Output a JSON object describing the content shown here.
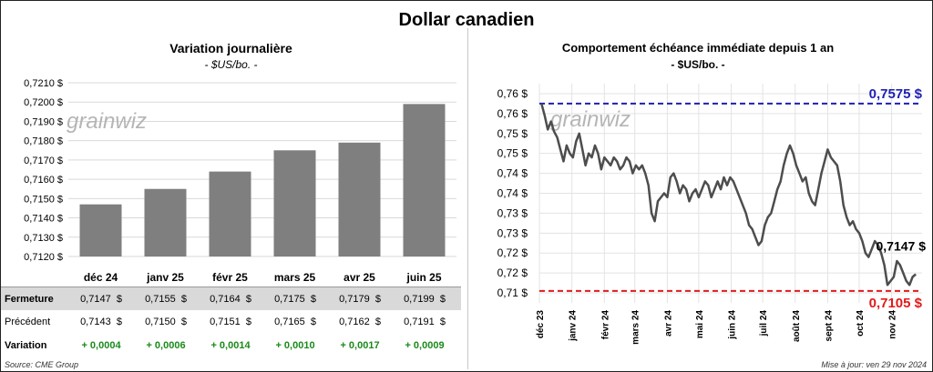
{
  "title": "Dollar canadien",
  "left": {
    "title": "Variation  journalière",
    "subtitle": "- $US/bo. -",
    "watermark": "grainwiz",
    "chart_data": {
      "type": "bar",
      "categories": [
        "déc 24",
        "janv 25",
        "févr 25",
        "mars 25",
        "avr 25",
        "juin 25"
      ],
      "values": [
        0.7147,
        0.7155,
        0.7164,
        0.7175,
        0.7179,
        0.7199
      ],
      "ylim": [
        0.712,
        0.721
      ],
      "yticks": [
        "0,7120 $",
        "0,7130 $",
        "0,7140 $",
        "0,7150 $",
        "0,7160 $",
        "0,7170 $",
        "0,7180 $",
        "0,7190 $",
        "0,7200 $",
        "0,7210 $"
      ],
      "bar_color": "#7f7f7f",
      "grid": true
    },
    "table": {
      "rows": [
        {
          "label": "Fermeture",
          "cells": [
            "0,7147  $",
            "0,7155  $",
            "0,7164  $",
            "0,7175  $",
            "0,7179  $",
            "0,7199  $"
          ],
          "bg": "#d9d9d9"
        },
        {
          "label": "Précédent",
          "cells": [
            "0,7143  $",
            "0,7150  $",
            "0,7151  $",
            "0,7165  $",
            "0,7162  $",
            "0,7191  $"
          ],
          "bg": "#ffffff"
        },
        {
          "label": "Variation",
          "cells": [
            "+ 0,0004",
            "+ 0,0006",
            "+ 0,0014",
            "+ 0,0010",
            "+ 0,0017",
            "+ 0,0009"
          ],
          "bg": "#ffffff"
        }
      ]
    },
    "source": "Source: CME Group"
  },
  "right": {
    "title": "Comportement échéance immédiate depuis 1 an",
    "subtitle": "- $US/bo. -",
    "watermark": "grainwiz",
    "update": "Mise à jour: ven 29 nov 2024",
    "chart_data": {
      "type": "line",
      "ylim": [
        0.7075,
        0.7625
      ],
      "ytick_values": [
        0.71,
        0.715,
        0.72,
        0.725,
        0.73,
        0.735,
        0.74,
        0.745,
        0.75,
        0.755,
        0.76
      ],
      "ytick_labels": [
        "0,71 $",
        "0,72 $",
        "0,72 $",
        "0,73 $",
        "0,73 $",
        "0,74 $",
        "0,74 $",
        "0,75 $",
        "0,75 $",
        "0,76 $",
        "0,76 $"
      ],
      "xlim": [
        0,
        365
      ],
      "xticks": [
        {
          "x": 0,
          "label": "déc 23"
        },
        {
          "x": 31,
          "label": "janv 24"
        },
        {
          "x": 62,
          "label": "févr 24"
        },
        {
          "x": 91,
          "label": "mars 24"
        },
        {
          "x": 122,
          "label": "avr 24"
        },
        {
          "x": 152,
          "label": "mai 24"
        },
        {
          "x": 183,
          "label": "juin 24"
        },
        {
          "x": 213,
          "label": "juil 24"
        },
        {
          "x": 244,
          "label": "août 24"
        },
        {
          "x": 275,
          "label": "sept 24"
        },
        {
          "x": 305,
          "label": "oct 24"
        },
        {
          "x": 336,
          "label": "nov 24"
        }
      ],
      "series": [
        {
          "color": "#4d4d4d",
          "points": [
            [
              2,
              0.7575
            ],
            [
              5,
              0.7545
            ],
            [
              8,
              0.751
            ],
            [
              11,
              0.753
            ],
            [
              14,
              0.7505
            ],
            [
              17,
              0.749
            ],
            [
              20,
              0.746
            ],
            [
              23,
              0.743
            ],
            [
              26,
              0.747
            ],
            [
              29,
              0.745
            ],
            [
              32,
              0.744
            ],
            [
              35,
              0.748
            ],
            [
              38,
              0.75
            ],
            [
              41,
              0.746
            ],
            [
              44,
              0.742
            ],
            [
              47,
              0.745
            ],
            [
              50,
              0.744
            ],
            [
              53,
              0.747
            ],
            [
              56,
              0.745
            ],
            [
              59,
              0.741
            ],
            [
              62,
              0.744
            ],
            [
              65,
              0.743
            ],
            [
              68,
              0.742
            ],
            [
              71,
              0.744
            ],
            [
              74,
              0.743
            ],
            [
              77,
              0.741
            ],
            [
              80,
              0.742
            ],
            [
              83,
              0.744
            ],
            [
              86,
              0.743
            ],
            [
              89,
              0.74
            ],
            [
              92,
              0.742
            ],
            [
              95,
              0.741
            ],
            [
              98,
              0.742
            ],
            [
              101,
              0.74
            ],
            [
              104,
              0.737
            ],
            [
              107,
              0.73
            ],
            [
              110,
              0.728
            ],
            [
              113,
              0.733
            ],
            [
              116,
              0.734
            ],
            [
              119,
              0.735
            ],
            [
              122,
              0.734
            ],
            [
              125,
              0.739
            ],
            [
              128,
              0.74
            ],
            [
              131,
              0.738
            ],
            [
              134,
              0.735
            ],
            [
              137,
              0.737
            ],
            [
              140,
              0.736
            ],
            [
              143,
              0.733
            ],
            [
              146,
              0.735
            ],
            [
              149,
              0.736
            ],
            [
              152,
              0.734
            ],
            [
              155,
              0.736
            ],
            [
              158,
              0.738
            ],
            [
              161,
              0.737
            ],
            [
              164,
              0.734
            ],
            [
              167,
              0.736
            ],
            [
              170,
              0.738
            ],
            [
              173,
              0.736
            ],
            [
              176,
              0.739
            ],
            [
              179,
              0.737
            ],
            [
              182,
              0.739
            ],
            [
              185,
              0.738
            ],
            [
              188,
              0.736
            ],
            [
              191,
              0.734
            ],
            [
              194,
              0.732
            ],
            [
              197,
              0.73
            ],
            [
              200,
              0.727
            ],
            [
              203,
              0.726
            ],
            [
              206,
              0.724
            ],
            [
              209,
              0.722
            ],
            [
              212,
              0.723
            ],
            [
              215,
              0.727
            ],
            [
              218,
              0.729
            ],
            [
              221,
              0.73
            ],
            [
              224,
              0.733
            ],
            [
              227,
              0.736
            ],
            [
              230,
              0.738
            ],
            [
              233,
              0.742
            ],
            [
              236,
              0.745
            ],
            [
              239,
              0.747
            ],
            [
              242,
              0.745
            ],
            [
              245,
              0.742
            ],
            [
              248,
              0.74
            ],
            [
              251,
              0.738
            ],
            [
              254,
              0.739
            ],
            [
              257,
              0.735
            ],
            [
              260,
              0.733
            ],
            [
              263,
              0.732
            ],
            [
              266,
              0.736
            ],
            [
              269,
              0.74
            ],
            [
              272,
              0.743
            ],
            [
              275,
              0.746
            ],
            [
              278,
              0.744
            ],
            [
              281,
              0.743
            ],
            [
              284,
              0.742
            ],
            [
              287,
              0.738
            ],
            [
              290,
              0.732
            ],
            [
              293,
              0.729
            ],
            [
              296,
              0.727
            ],
            [
              299,
              0.728
            ],
            [
              302,
              0.726
            ],
            [
              305,
              0.725
            ],
            [
              308,
              0.723
            ],
            [
              311,
              0.72
            ],
            [
              314,
              0.719
            ],
            [
              317,
              0.721
            ],
            [
              320,
              0.723
            ],
            [
              323,
              0.722
            ],
            [
              326,
              0.72
            ],
            [
              329,
              0.717
            ],
            [
              332,
              0.712
            ],
            [
              335,
              0.713
            ],
            [
              338,
              0.714
            ],
            [
              341,
              0.718
            ],
            [
              344,
              0.717
            ],
            [
              347,
              0.715
            ],
            [
              350,
              0.713
            ],
            [
              353,
              0.712
            ],
            [
              356,
              0.714
            ],
            [
              359,
              0.7147
            ]
          ]
        }
      ],
      "hlines": [
        {
          "y": 0.7575,
          "label": "0,7575 $",
          "color": "#1f1fb3"
        },
        {
          "y": 0.7105,
          "label": "0,7105 $",
          "color": "#e01b1b"
        }
      ],
      "last_label": "0,7147 $"
    }
  }
}
